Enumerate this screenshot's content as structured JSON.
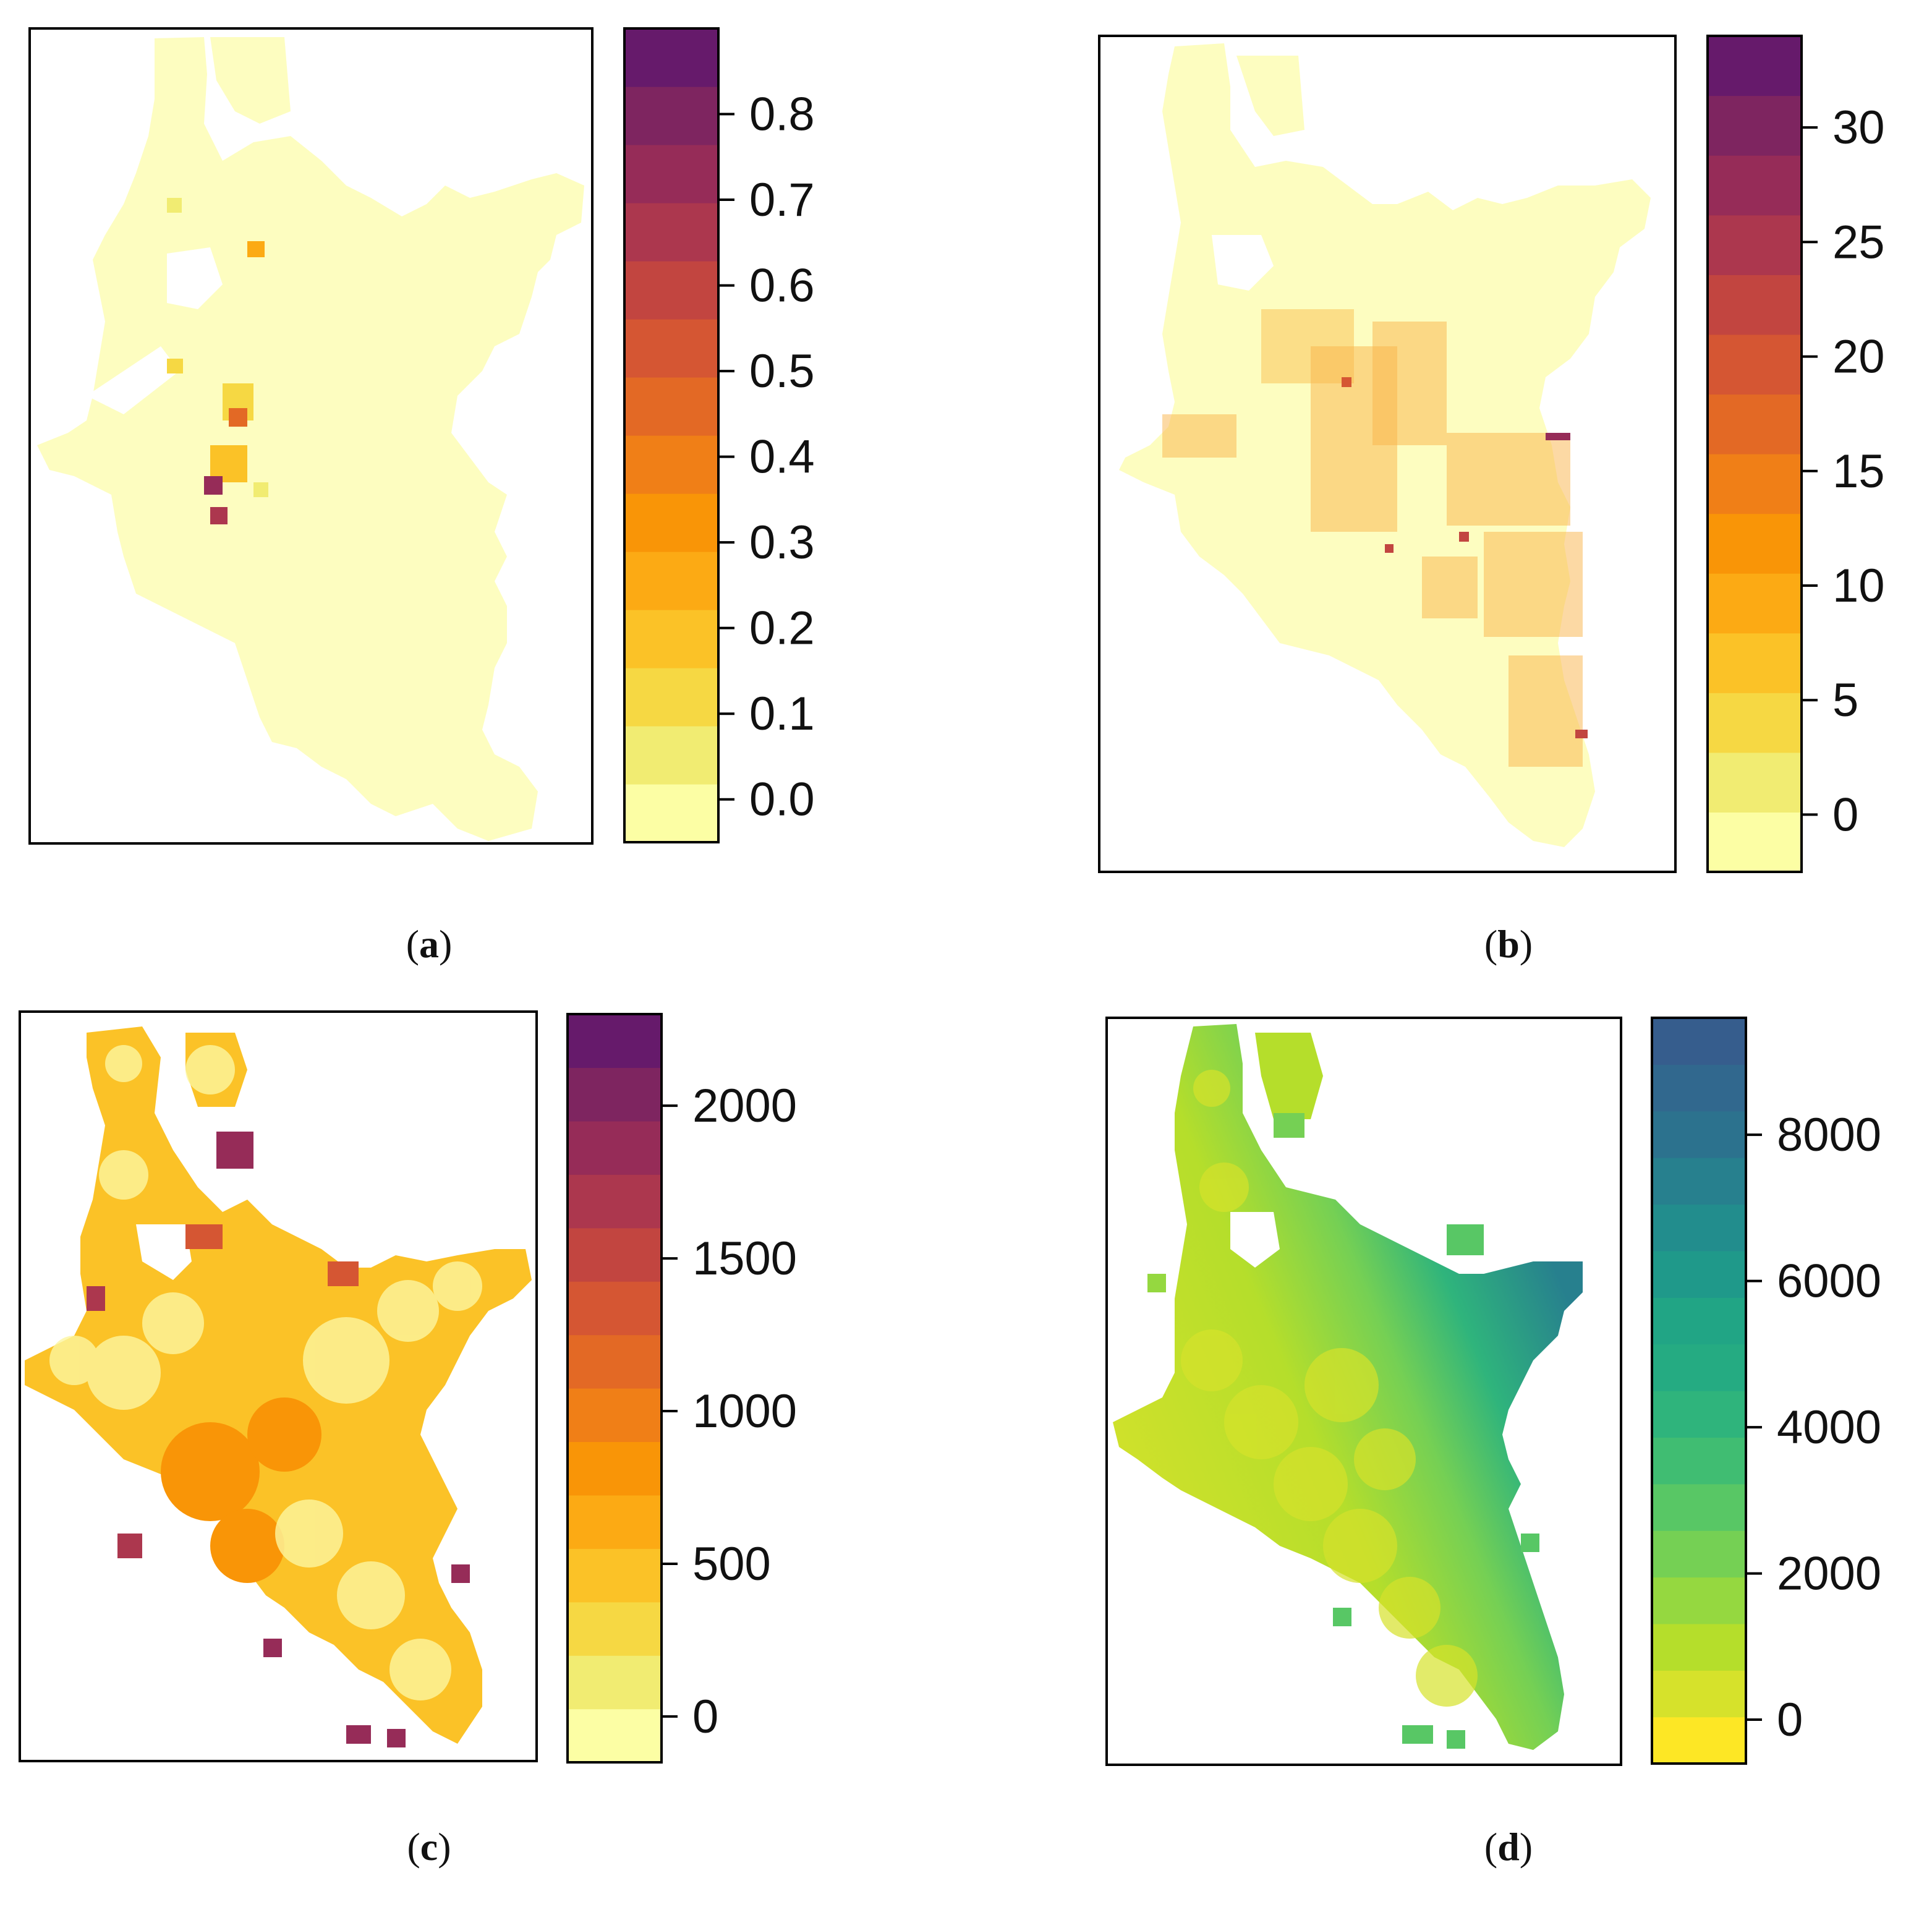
{
  "panels": [
    {
      "id": "a",
      "caption_letter": "a",
      "palette": "inferno",
      "colorbar": {
        "range": [
          -0.05,
          0.9
        ],
        "ticks": [
          {
            "value": 0.0,
            "label": "0.0"
          },
          {
            "value": 0.1,
            "label": "0.1"
          },
          {
            "value": 0.2,
            "label": "0.2"
          },
          {
            "value": 0.3,
            "label": "0.3"
          },
          {
            "value": 0.4,
            "label": "0.4"
          },
          {
            "value": 0.5,
            "label": "0.5"
          },
          {
            "value": 0.6,
            "label": "0.6"
          },
          {
            "value": 0.7,
            "label": "0.7"
          },
          {
            "value": 0.8,
            "label": "0.8"
          }
        ],
        "colors": [
          "#fcfea4",
          "#f1ec72",
          "#f6d843",
          "#fbc227",
          "#fcaa14",
          "#f99507",
          "#f07f17",
          "#e36925",
          "#d55633",
          "#c24540",
          "#ac374e",
          "#962c58",
          "#7e2560",
          "#661a6b"
        ]
      }
    },
    {
      "id": "b",
      "caption_letter": "b",
      "palette": "inferno",
      "colorbar": {
        "range": [
          -2.5,
          34
        ],
        "ticks": [
          {
            "value": 0,
            "label": "0"
          },
          {
            "value": 5,
            "label": "5"
          },
          {
            "value": 10,
            "label": "10"
          },
          {
            "value": 15,
            "label": "15"
          },
          {
            "value": 20,
            "label": "20"
          },
          {
            "value": 25,
            "label": "25"
          },
          {
            "value": 30,
            "label": "30"
          }
        ],
        "colors": [
          "#fcfea4",
          "#f1ec72",
          "#f6d843",
          "#fbc227",
          "#fcaa14",
          "#f99507",
          "#f07f17",
          "#e36925",
          "#d55633",
          "#c24540",
          "#ac374e",
          "#962c58",
          "#7e2560",
          "#661a6b"
        ]
      }
    },
    {
      "id": "c",
      "caption_letter": "c",
      "palette": "inferno",
      "colorbar": {
        "range": [
          -150,
          2300
        ],
        "ticks": [
          {
            "value": 0,
            "label": "0"
          },
          {
            "value": 500,
            "label": "500"
          },
          {
            "value": 1000,
            "label": "1000"
          },
          {
            "value": 1500,
            "label": "1500"
          },
          {
            "value": 2000,
            "label": "2000"
          }
        ],
        "colors": [
          "#fcfea4",
          "#f1ec72",
          "#f6d843",
          "#fbc227",
          "#fcaa14",
          "#f99507",
          "#f07f17",
          "#e36925",
          "#d55633",
          "#c24540",
          "#ac374e",
          "#962c58",
          "#7e2560",
          "#661a6b"
        ]
      }
    },
    {
      "id": "d",
      "caption_letter": "d",
      "palette": "viridis",
      "colorbar": {
        "range": [
          -600,
          9600
        ],
        "ticks": [
          {
            "value": 0,
            "label": "0"
          },
          {
            "value": 2000,
            "label": "2000"
          },
          {
            "value": 4000,
            "label": "4000"
          },
          {
            "value": 6000,
            "label": "6000"
          },
          {
            "value": 8000,
            "label": "8000"
          }
        ],
        "colors": [
          "#fde725",
          "#d6e22b",
          "#b5de2b",
          "#95d840",
          "#75d054",
          "#58c765",
          "#40bd72",
          "#2fb47c",
          "#25ab82",
          "#21a585",
          "#1f998a",
          "#228d8d",
          "#27808e",
          "#2c728e",
          "#31688e",
          "#365d8d"
        ]
      }
    }
  ]
}
